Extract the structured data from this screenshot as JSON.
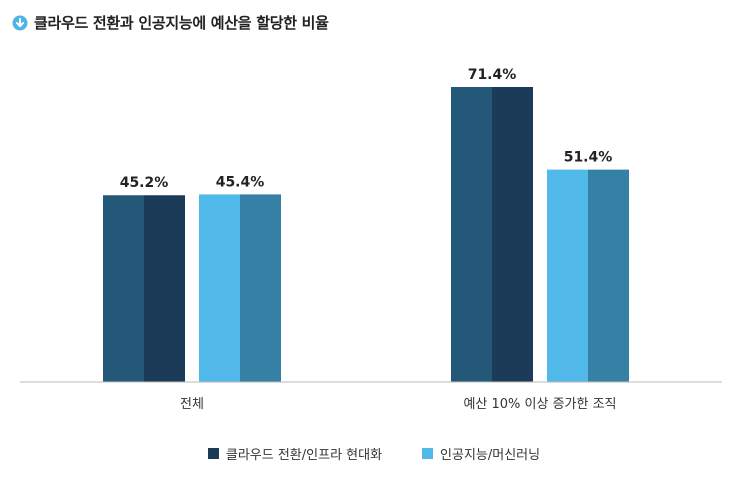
{
  "title": "클라우드 전환과 인공지능에 예산을 할당한 비율",
  "icon": "arrow-down-circle-icon",
  "colors": {
    "accent": "#4fb3e6",
    "series1_light": "#245878",
    "series1_dark": "#1c3b58",
    "series2_light": "#51b8ea",
    "series2_dark": "#3580a5",
    "axis": "#bbbbbb"
  },
  "chart_data": {
    "type": "bar",
    "categories": [
      "전체",
      "예산 10% 이상 증가한 조직"
    ],
    "series": [
      {
        "name": "클라우드 전환/인프라 현대화",
        "values": [
          45.2,
          71.4
        ],
        "labels": [
          "45.2%",
          "71.4%"
        ]
      },
      {
        "name": "인공지능/머신러닝",
        "values": [
          45.4,
          51.4
        ],
        "labels": [
          "45.4%",
          "51.4%"
        ]
      }
    ],
    "ylim": [
      0,
      80
    ],
    "grid": false,
    "legend_position": "bottom"
  }
}
